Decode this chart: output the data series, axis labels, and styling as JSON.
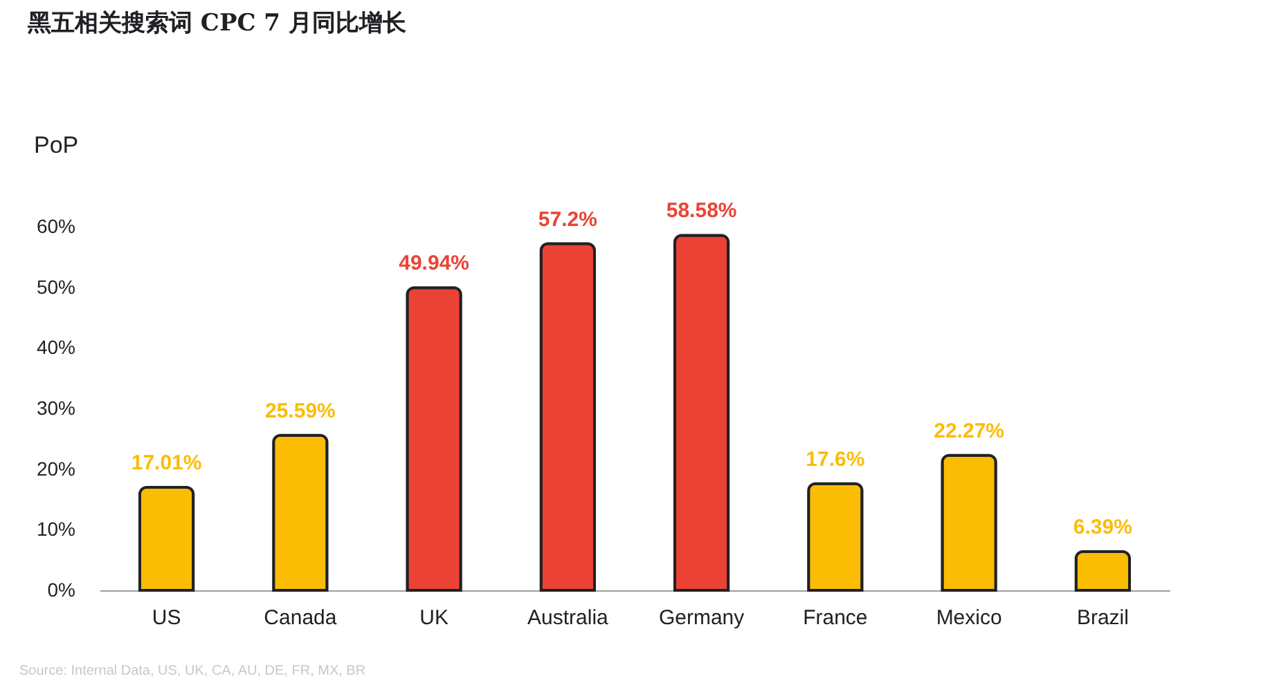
{
  "chart_data": {
    "type": "bar",
    "title": "黑五相关搜索词 CPC 7 月同比增长",
    "ylabel": "PoP",
    "categories": [
      "US",
      "Canada",
      "UK",
      "Australia",
      "Germany",
      "France",
      "Mexico",
      "Brazil"
    ],
    "values": [
      17.01,
      25.59,
      49.94,
      57.2,
      58.58,
      17.6,
      22.27,
      6.39
    ],
    "colors": [
      "#fbbc04",
      "#fbbc04",
      "#ea4335",
      "#ea4335",
      "#ea4335",
      "#fbbc04",
      "#fbbc04",
      "#fbbc04"
    ],
    "value_labels": [
      "17.01%",
      "25.59%",
      "49.94%",
      "57.2%",
      "58.58%",
      "17.6%",
      "22.27%",
      "6.39%"
    ],
    "ylim": [
      0,
      60
    ],
    "yticks": [
      {
        "value": 0,
        "label": "0%"
      },
      {
        "value": 10,
        "label": "10%"
      },
      {
        "value": 20,
        "label": "20%"
      },
      {
        "value": 30,
        "label": "30%"
      },
      {
        "value": 40,
        "label": "40%"
      },
      {
        "value": 50,
        "label": "50%"
      },
      {
        "value": 60,
        "label": "60%"
      }
    ],
    "grid": false,
    "annotations": [
      "Source: Internal Data, US, UK, CA, AU, DE, FR, MX, BR"
    ]
  }
}
